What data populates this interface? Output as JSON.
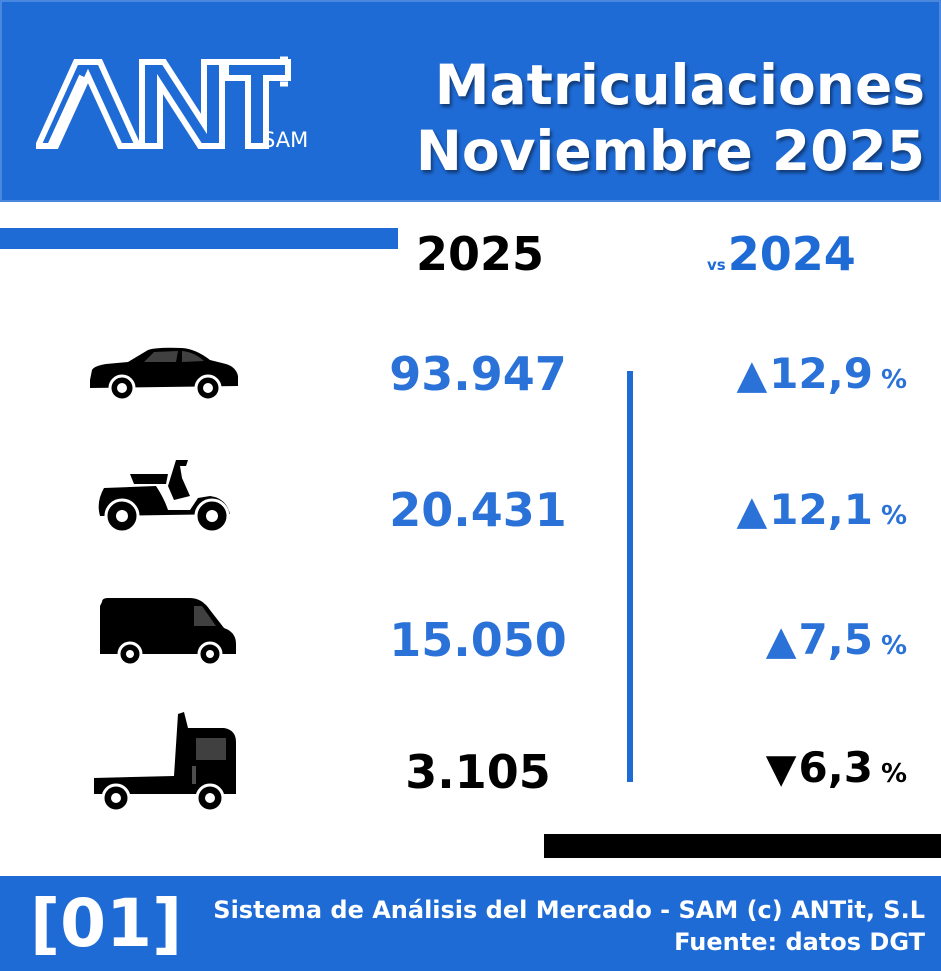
{
  "header": {
    "logo_text": "ANT",
    "logo_sub": "SAM",
    "title_line1": "Matriculaciones",
    "title_line2": "Noviembre 2025"
  },
  "columns": {
    "current_year": "2025",
    "vs_label": "vs",
    "previous_year": "2024"
  },
  "rows": [
    {
      "vehicle_icon": "car-icon",
      "value": "93.947",
      "direction": "up",
      "arrow": "▲",
      "change": "12,9",
      "unit": "%"
    },
    {
      "vehicle_icon": "scooter-icon",
      "value": "20.431",
      "direction": "up",
      "arrow": "▲",
      "change": "12,1",
      "unit": "%"
    },
    {
      "vehicle_icon": "van-icon",
      "value": "15.050",
      "direction": "up",
      "arrow": "▲",
      "change": "7,5",
      "unit": "%"
    },
    {
      "vehicle_icon": "truck-icon",
      "value": "3.105",
      "direction": "down",
      "arrow": "▼",
      "change": "6,3",
      "unit": "%"
    }
  ],
  "footer": {
    "badge": "[01]",
    "line1": "Sistema de Análisis del Mercado - SAM (c) ANTit, S.L",
    "line2": "Fuente: datos DGT"
  },
  "colors": {
    "accent": "#1f6bd6",
    "value_blue": "#2a72d8",
    "dark": "#000000",
    "white": "#ffffff"
  }
}
